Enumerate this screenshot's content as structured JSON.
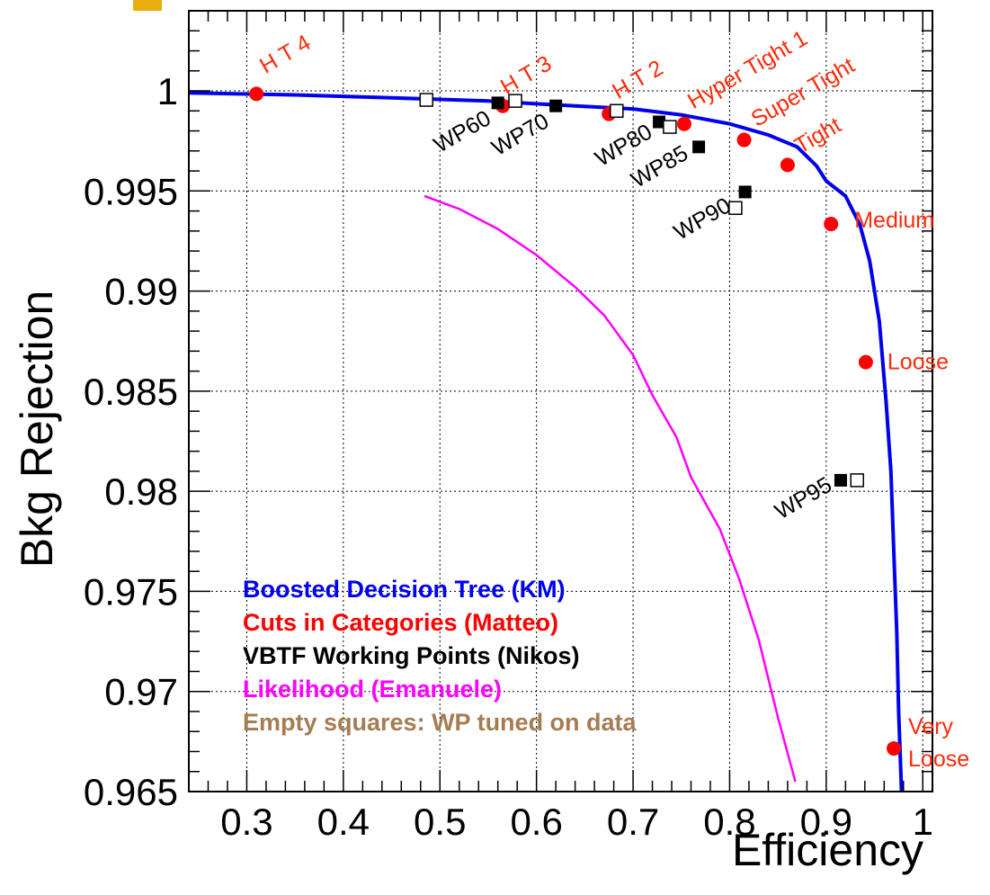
{
  "chart_data": {
    "type": "scatter",
    "xlabel": "Efficiency",
    "ylabel": "Bkg Rejection",
    "xlim": [
      0.24,
      1.01
    ],
    "ylim": [
      0.965,
      1.004
    ],
    "grid": true,
    "x_ticks": [
      0.3,
      0.4,
      0.5,
      0.6,
      0.7,
      0.8,
      0.9,
      1
    ],
    "x_tick_labels": [
      "0.3",
      "0.4",
      "0.5",
      "0.6",
      "0.7",
      "0.8",
      "0.9",
      "1"
    ],
    "y_ticks": [
      0.965,
      0.97,
      0.975,
      0.98,
      0.985,
      0.99,
      0.995,
      1
    ],
    "y_tick_labels": [
      "0.965",
      "0.97",
      "0.975",
      "0.98",
      "0.985",
      "0.99",
      "0.995",
      "1"
    ],
    "legend_position": "bottom-left",
    "legend": [
      {
        "label": "Boosted Decision Tree (KM)",
        "color": "#0000ee"
      },
      {
        "label": "Cuts in Categories (Matteo)",
        "color": "#ff0000"
      },
      {
        "label": "VBTF Working Points (Nikos)",
        "color": "#000000"
      },
      {
        "label": "Likelihood (Emanuele)",
        "color": "#ff00ff"
      },
      {
        "label": "Empty squares: WP tuned on data",
        "color": "#a67c52"
      }
    ],
    "series": [
      {
        "id": "bdt",
        "kind": "line",
        "color": "#0000ee",
        "x": [
          0.24,
          0.35,
          0.45,
          0.55,
          0.62,
          0.7,
          0.75,
          0.8,
          0.84,
          0.87,
          0.89,
          0.9,
          0.92,
          0.935,
          0.945,
          0.955,
          0.962,
          0.967,
          0.97,
          0.973,
          0.975,
          0.978
        ],
        "y": [
          0.9999,
          0.9998,
          0.99965,
          0.9995,
          0.9993,
          0.9991,
          0.9988,
          0.99835,
          0.9978,
          0.9972,
          0.99625,
          0.9955,
          0.99475,
          0.9933,
          0.9915,
          0.9885,
          0.9845,
          0.981,
          0.977,
          0.973,
          0.969,
          0.965
        ]
      },
      {
        "id": "likelihood",
        "kind": "line",
        "color": "#ff00ff",
        "x": [
          0.484,
          0.52,
          0.56,
          0.6,
          0.64,
          0.67,
          0.7,
          0.72,
          0.745,
          0.76,
          0.79,
          0.81,
          0.83,
          0.85,
          0.868
        ],
        "y": [
          0.99475,
          0.9941,
          0.9931,
          0.9918,
          0.9902,
          0.9888,
          0.9868,
          0.9848,
          0.9827,
          0.9807,
          0.9781,
          0.9756,
          0.9726,
          0.9687,
          0.9655
        ]
      },
      {
        "id": "cuts",
        "kind": "points",
        "marker": "filled-circle",
        "color": "#ff0000",
        "points": [
          {
            "x": 0.31,
            "y": 0.99985,
            "label": "H T 4"
          },
          {
            "x": 0.565,
            "y": 0.99925,
            "label": "H T 3"
          },
          {
            "x": 0.675,
            "y": 0.99885,
            "label": "H T 2"
          },
          {
            "x": 0.753,
            "y": 0.99835,
            "label": "Hyper Tight 1"
          },
          {
            "x": 0.815,
            "y": 0.99755,
            "label": "Super Tight"
          },
          {
            "x": 0.86,
            "y": 0.9963,
            "label": "Tight"
          },
          {
            "x": 0.905,
            "y": 0.99335,
            "label": "Medium"
          },
          {
            "x": 0.941,
            "y": 0.98645,
            "label": "Loose"
          },
          {
            "x": 0.97,
            "y": 0.96715,
            "label": "Very\nLoose"
          }
        ]
      },
      {
        "id": "vbtf",
        "kind": "points",
        "marker": "filled-square",
        "color": "#000000",
        "points": [
          {
            "x": 0.56,
            "y": 0.9994,
            "label": "WP60"
          },
          {
            "x": 0.62,
            "y": 0.99925,
            "label": "WP70"
          },
          {
            "x": 0.727,
            "y": 0.99845,
            "label": "WP80"
          },
          {
            "x": 0.768,
            "y": 0.9972,
            "label": "WP85"
          },
          {
            "x": 0.816,
            "y": 0.99495,
            "label": "WP90"
          },
          {
            "x": 0.915,
            "y": 0.98055,
            "label": "WP95"
          }
        ]
      },
      {
        "id": "data_tuned",
        "kind": "points",
        "marker": "open-square",
        "color": "#000000",
        "points": [
          {
            "x": 0.486,
            "y": 0.99955
          },
          {
            "x": 0.578,
            "y": 0.9995
          },
          {
            "x": 0.683,
            "y": 0.999
          },
          {
            "x": 0.738,
            "y": 0.9982
          },
          {
            "x": 0.806,
            "y": 0.99415
          },
          {
            "x": 0.932,
            "y": 0.98055
          }
        ]
      }
    ]
  }
}
